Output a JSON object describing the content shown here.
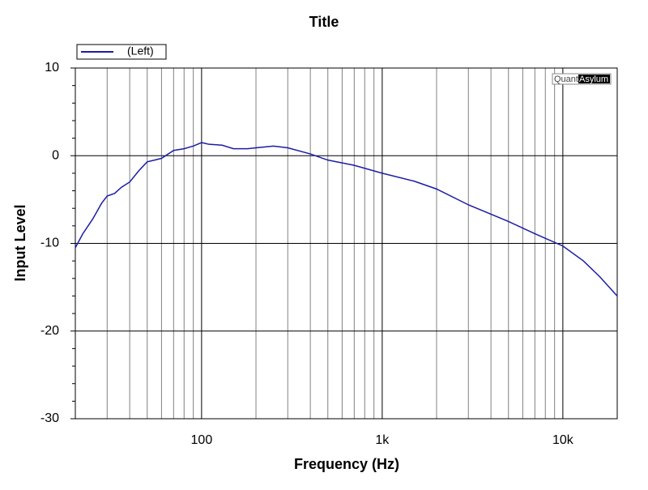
{
  "chart_data": {
    "type": "line",
    "title": "Title",
    "x_label": "Frequency (Hz)",
    "y_label": "Input Level",
    "x_log": true,
    "grid": true,
    "legend": "top-left",
    "xlim": [
      20,
      20000
    ],
    "ylim": [
      -30,
      10
    ],
    "xticks": [
      100,
      {
        "value": 1000,
        "label": "1k"
      },
      {
        "value": 10000,
        "label": "10k"
      }
    ],
    "xminor": [
      20,
      30,
      40,
      50,
      60,
      70,
      80,
      90,
      200,
      300,
      400,
      500,
      600,
      700,
      800,
      900,
      2000,
      3000,
      4000,
      5000,
      6000,
      7000,
      8000,
      9000
    ],
    "yticks": [
      -30,
      -20,
      -10,
      0,
      10
    ],
    "yminor": [
      -28,
      -26,
      -24,
      -22,
      -18,
      -16,
      -14,
      -12,
      -8,
      -6,
      -4,
      -2,
      2,
      4,
      6,
      8
    ],
    "watermark": [
      "Quant",
      "Asylum"
    ],
    "x": [
      20,
      22,
      25,
      28,
      30,
      33,
      36,
      40,
      45,
      50,
      55,
      60,
      70,
      80,
      90,
      100,
      110,
      130,
      150,
      180,
      200,
      250,
      300,
      400,
      500,
      700,
      1000,
      1500,
      2000,
      3000,
      5000,
      7000,
      10000,
      13000,
      16000,
      20000
    ],
    "series": [
      {
        "name": "(Left)",
        "color": "#1c1ca6",
        "values": [
          -10.5,
          -8.9,
          -7.2,
          -5.4,
          -4.6,
          -4.3,
          -3.6,
          -3.0,
          -1.7,
          -0.7,
          -0.5,
          -0.3,
          0.6,
          0.8,
          1.1,
          1.5,
          1.3,
          1.2,
          0.8,
          0.8,
          0.9,
          1.1,
          0.9,
          0.2,
          -0.5,
          -1.1,
          -2.0,
          -2.9,
          -3.8,
          -5.6,
          -7.5,
          -8.9,
          -10.3,
          -12.0,
          -13.8,
          -16.0
        ]
      }
    ]
  }
}
